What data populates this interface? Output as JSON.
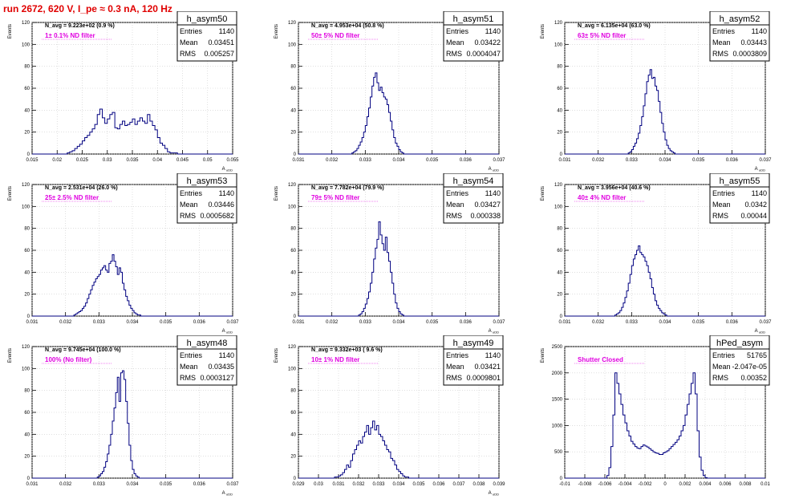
{
  "run_title": "run 2672,   620 V, I_pe ≈ 0.3 nA, 120 Hz",
  "colors": {
    "hist": "#000080",
    "annotation": "#e000e0",
    "title": "#e00000",
    "frame": "#000000",
    "grid": "#cccccc"
  },
  "stat_labels": {
    "entries": "Entries",
    "mean": "Mean",
    "rms": "RMS"
  },
  "chart_data": [
    {
      "type": "histogram",
      "name": "h_asym50",
      "stats": {
        "entries": "1140",
        "mean": "0.03451",
        "rms": "0.005257"
      },
      "navg": "N_avg = 9.223e+02 (0.9 %)",
      "note": "1± 0.1% ND filter",
      "xlabel": "A uDD",
      "ylabel": "Events",
      "xlim": [
        0.015,
        0.055
      ],
      "ylim": [
        0,
        120
      ],
      "xticks": [
        "0.015",
        "0.02",
        "0.025",
        "0.03",
        "0.035",
        "0.04",
        "0.045",
        "0.05",
        "0.055"
      ],
      "yticks": [
        "0",
        "20",
        "40",
        "60",
        "80",
        "100",
        "120"
      ],
      "x0": 0.015,
      "bin_width": 0.0005,
      "values": [
        0,
        0,
        0,
        0,
        0,
        0,
        0,
        0,
        0,
        0,
        0,
        0,
        0,
        0,
        1,
        2,
        3,
        5,
        7,
        9,
        12,
        15,
        17,
        20,
        23,
        27,
        36,
        41,
        33,
        28,
        32,
        36,
        38,
        24,
        23,
        27,
        30,
        26,
        27,
        29,
        32,
        27,
        30,
        33,
        30,
        28,
        36,
        30,
        26,
        22,
        15,
        10,
        8,
        5,
        2,
        1,
        1,
        1,
        0,
        0,
        0,
        0,
        0,
        0,
        0,
        0,
        0,
        0,
        0,
        0,
        0,
        0,
        0,
        0,
        0,
        0,
        0,
        0,
        0,
        0,
        0
      ]
    },
    {
      "type": "histogram",
      "name": "h_asym51",
      "stats": {
        "entries": "1140",
        "mean": "0.03422",
        "rms": "0.0004047"
      },
      "navg": "N_avg = 4.953e+04 (50.8 %)",
      "note": "50± 5% ND filter",
      "xlabel": "A uDD",
      "ylabel": "Events",
      "xlim": [
        0.031,
        0.037
      ],
      "ylim": [
        0,
        120
      ],
      "xticks": [
        "0.031",
        "0.032",
        "0.033",
        "0.034",
        "0.035",
        "0.036",
        "0.037"
      ],
      "yticks": [
        "0",
        "20",
        "40",
        "60",
        "80",
        "100",
        "120"
      ],
      "x0": 0.031,
      "bin_width": 5e-05,
      "values": [
        0,
        0,
        0,
        0,
        0,
        0,
        0,
        0,
        0,
        0,
        0,
        0,
        0,
        0,
        0,
        0,
        0,
        0,
        0,
        0,
        0,
        0,
        0,
        0,
        0,
        0,
        0,
        0,
        0,
        0,
        0,
        0,
        1,
        2,
        3,
        5,
        8,
        11,
        15,
        20,
        26,
        34,
        42,
        52,
        62,
        70,
        74,
        65,
        58,
        61,
        56,
        52,
        50,
        45,
        38,
        30,
        22,
        15,
        10,
        7,
        4,
        2,
        1,
        0,
        0,
        0,
        0,
        0,
        0,
        0,
        0,
        0,
        0,
        0,
        0,
        0,
        0,
        0,
        0,
        0,
        0,
        0,
        0,
        0,
        0,
        0,
        0,
        0,
        0,
        0,
        0,
        0,
        0,
        0,
        0,
        0,
        0,
        0,
        0,
        0,
        0,
        0,
        0,
        0,
        0,
        0,
        0,
        0,
        0,
        0,
        0,
        0,
        0,
        0,
        0,
        0,
        0,
        0,
        0,
        0
      ]
    },
    {
      "type": "histogram",
      "name": "h_asym52",
      "stats": {
        "entries": "1140",
        "mean": "0.03443",
        "rms": "0.0003809"
      },
      "navg": "N_avg = 6.135e+04 (63.0 %)",
      "note": "63± 5% ND filter",
      "xlabel": "A uDD",
      "ylabel": "Events",
      "xlim": [
        0.031,
        0.037
      ],
      "ylim": [
        0,
        120
      ],
      "xticks": [
        "0.031",
        "0.032",
        "0.033",
        "0.034",
        "0.035",
        "0.036",
        "0.037"
      ],
      "yticks": [
        "0",
        "20",
        "40",
        "60",
        "80",
        "100",
        "120"
      ],
      "x0": 0.031,
      "bin_width": 5e-05,
      "values": [
        0,
        0,
        0,
        0,
        0,
        0,
        0,
        0,
        0,
        0,
        0,
        0,
        0,
        0,
        0,
        0,
        0,
        0,
        0,
        0,
        0,
        0,
        0,
        0,
        0,
        0,
        0,
        0,
        0,
        0,
        0,
        0,
        0,
        0,
        0,
        0,
        0,
        0,
        1,
        2,
        4,
        7,
        10,
        14,
        19,
        26,
        34,
        44,
        55,
        66,
        72,
        77,
        69,
        70,
        62,
        58,
        48,
        38,
        28,
        20,
        13,
        8,
        5,
        3,
        2,
        1,
        0,
        0,
        0,
        0,
        0,
        0,
        0,
        0,
        0,
        0,
        0,
        0,
        0,
        0,
        0,
        0,
        0,
        0,
        0,
        0,
        0,
        0,
        0,
        0,
        0,
        0,
        0,
        0,
        0,
        0,
        0,
        0,
        0,
        0,
        0,
        0,
        0,
        0,
        0,
        0,
        0,
        0,
        0,
        0,
        0,
        0,
        0,
        0,
        0,
        0,
        0,
        0,
        0,
        0
      ]
    },
    {
      "type": "histogram",
      "name": "h_asym53",
      "stats": {
        "entries": "1140",
        "mean": "0.03446",
        "rms": "0.0005682"
      },
      "navg": "N_avg = 2.531e+04 (26.0 %)",
      "note": "25± 2.5% ND filter",
      "xlabel": "A uDD",
      "ylabel": "Events",
      "xlim": [
        0.031,
        0.037
      ],
      "ylim": [
        0,
        120
      ],
      "xticks": [
        "0.031",
        "0.032",
        "0.033",
        "0.034",
        "0.035",
        "0.036",
        "0.037"
      ],
      "yticks": [
        "0",
        "20",
        "40",
        "60",
        "80",
        "100",
        "120"
      ],
      "x0": 0.031,
      "bin_width": 5e-05,
      "values": [
        0,
        0,
        0,
        0,
        0,
        0,
        0,
        0,
        0,
        0,
        0,
        0,
        0,
        0,
        0,
        0,
        0,
        0,
        0,
        0,
        0,
        0,
        0,
        0,
        0,
        1,
        2,
        3,
        4,
        5,
        7,
        9,
        12,
        16,
        20,
        24,
        28,
        31,
        34,
        36,
        38,
        42,
        44,
        46,
        42,
        40,
        48,
        50,
        56,
        50,
        45,
        38,
        44,
        40,
        30,
        24,
        18,
        14,
        10,
        7,
        5,
        3,
        2,
        1,
        1,
        0,
        0,
        0,
        0,
        0,
        0,
        0,
        0,
        0,
        0,
        0,
        0,
        0,
        0,
        0,
        0,
        0,
        0,
        0,
        0,
        0,
        0,
        0,
        0,
        0,
        0,
        0,
        0,
        0,
        0,
        0,
        0,
        0,
        0,
        0,
        0,
        0,
        0,
        0,
        0,
        0,
        0,
        0,
        0,
        0,
        0,
        0,
        0,
        0,
        0,
        0,
        0,
        0,
        0,
        0
      ]
    },
    {
      "type": "histogram",
      "name": "h_asym54",
      "stats": {
        "entries": "1140",
        "mean": "0.03427",
        "rms": "0.000338"
      },
      "navg": "N_avg = 7.782e+04 (79.9 %)",
      "note": "79± 5% ND filter",
      "xlabel": "A uDD",
      "ylabel": "Events",
      "xlim": [
        0.031,
        0.037
      ],
      "ylim": [
        0,
        120
      ],
      "xticks": [
        "0.031",
        "0.032",
        "0.033",
        "0.034",
        "0.035",
        "0.036",
        "0.037"
      ],
      "yticks": [
        "0",
        "20",
        "40",
        "60",
        "80",
        "100",
        "120"
      ],
      "x0": 0.031,
      "bin_width": 5e-05,
      "values": [
        0,
        0,
        0,
        0,
        0,
        0,
        0,
        0,
        0,
        0,
        0,
        0,
        0,
        0,
        0,
        0,
        0,
        0,
        0,
        0,
        0,
        0,
        0,
        0,
        0,
        0,
        0,
        0,
        0,
        0,
        0,
        0,
        0,
        0,
        0,
        0,
        1,
        2,
        4,
        7,
        11,
        16,
        22,
        30,
        40,
        52,
        62,
        70,
        86,
        74,
        66,
        60,
        72,
        58,
        50,
        40,
        30,
        20,
        12,
        7,
        4,
        2,
        1,
        0,
        0,
        0,
        0,
        0,
        0,
        0,
        0,
        0,
        0,
        0,
        0,
        0,
        0,
        0,
        0,
        0,
        0,
        0,
        0,
        0,
        0,
        0,
        0,
        0,
        0,
        0,
        0,
        0,
        0,
        0,
        0,
        0,
        0,
        0,
        0,
        0,
        0,
        0,
        0,
        0,
        0,
        0,
        0,
        0,
        0,
        0,
        0,
        0,
        0,
        0,
        0,
        0,
        0,
        0,
        0,
        0
      ]
    },
    {
      "type": "histogram",
      "name": "h_asym55",
      "stats": {
        "entries": "1140",
        "mean": "0.0342",
        "rms": "0.00044"
      },
      "navg": "N_avg = 3.956e+04 (40.6 %)",
      "note": "40± 4% ND filter",
      "xlabel": "A uDD",
      "ylabel": "Events",
      "xlim": [
        0.031,
        0.037
      ],
      "ylim": [
        0,
        120
      ],
      "xticks": [
        "0.031",
        "0.032",
        "0.033",
        "0.034",
        "0.035",
        "0.036",
        "0.037"
      ],
      "yticks": [
        "0",
        "20",
        "40",
        "60",
        "80",
        "100",
        "120"
      ],
      "x0": 0.031,
      "bin_width": 5e-05,
      "values": [
        0,
        0,
        0,
        0,
        0,
        0,
        0,
        0,
        0,
        0,
        0,
        0,
        0,
        0,
        0,
        0,
        0,
        0,
        0,
        0,
        0,
        0,
        0,
        0,
        0,
        0,
        0,
        0,
        0,
        0,
        1,
        2,
        3,
        5,
        8,
        12,
        17,
        23,
        30,
        38,
        46,
        52,
        56,
        60,
        64,
        58,
        56,
        54,
        50,
        46,
        40,
        34,
        26,
        20,
        14,
        10,
        7,
        5,
        3,
        2,
        1,
        0,
        0,
        0,
        0,
        0,
        0,
        0,
        0,
        0,
        0,
        0,
        0,
        0,
        0,
        0,
        0,
        0,
        0,
        0,
        0,
        0,
        0,
        0,
        0,
        0,
        0,
        0,
        0,
        0,
        0,
        0,
        0,
        0,
        0,
        0,
        0,
        0,
        0,
        0,
        0,
        0,
        0,
        0,
        0,
        0,
        0,
        0,
        0,
        0,
        0,
        0,
        0,
        0,
        0,
        0,
        0,
        0,
        0,
        0
      ]
    },
    {
      "type": "histogram",
      "name": "h_asym48",
      "stats": {
        "entries": "1140",
        "mean": "0.03435",
        "rms": "0.0003127"
      },
      "navg": "N_avg = 9.745e+04 (100.0 %)",
      "note": "100% (No filter)",
      "xlabel": "A uDD",
      "ylabel": "Events",
      "xlim": [
        0.031,
        0.037
      ],
      "ylim": [
        0,
        120
      ],
      "xticks": [
        "0.031",
        "0.032",
        "0.033",
        "0.034",
        "0.035",
        "0.036",
        "0.037"
      ],
      "yticks": [
        "0",
        "20",
        "40",
        "60",
        "80",
        "100",
        "120"
      ],
      "x0": 0.031,
      "bin_width": 5e-05,
      "values": [
        0,
        0,
        0,
        0,
        0,
        0,
        0,
        0,
        0,
        0,
        0,
        0,
        0,
        0,
        0,
        0,
        0,
        0,
        0,
        0,
        0,
        0,
        0,
        0,
        0,
        0,
        0,
        0,
        0,
        0,
        0,
        0,
        0,
        0,
        0,
        0,
        0,
        0,
        0,
        1,
        2,
        4,
        6,
        10,
        15,
        22,
        30,
        40,
        52,
        64,
        78,
        92,
        70,
        96,
        98,
        90,
        70,
        50,
        30,
        16,
        8,
        4,
        2,
        1,
        0,
        0,
        0,
        0,
        0,
        0,
        0,
        0,
        0,
        0,
        0,
        0,
        0,
        0,
        0,
        0,
        0,
        0,
        0,
        0,
        0,
        0,
        0,
        0,
        0,
        0,
        0,
        0,
        0,
        0,
        0,
        0,
        0,
        0,
        0,
        0,
        0,
        0,
        0,
        0,
        0,
        0,
        0,
        0,
        0,
        0,
        0,
        0,
        0,
        0,
        0,
        0,
        0,
        0,
        0,
        0
      ]
    },
    {
      "type": "histogram",
      "name": "h_asym49",
      "stats": {
        "entries": "1140",
        "mean": "0.03421",
        "rms": "0.0009801"
      },
      "navg": "N_avg = 9.332e+03 ( 9.6 %)",
      "note": "10± 1% ND filter",
      "xlabel": "A uDD",
      "ylabel": "Events",
      "xlim": [
        0.029,
        0.039
      ],
      "ylim": [
        0,
        120
      ],
      "xticks": [
        "0.029",
        "0.03",
        "0.031",
        "0.032",
        "0.033",
        "0.034",
        "0.035",
        "0.036",
        "0.037",
        "0.038",
        "0.039"
      ],
      "yticks": [
        "0",
        "20",
        "40",
        "60",
        "80",
        "100",
        "120"
      ],
      "x0": 0.029,
      "bin_width": 0.0001,
      "values": [
        0,
        0,
        0,
        0,
        0,
        0,
        0,
        0,
        0,
        0,
        0,
        0,
        0,
        0,
        0,
        0,
        0,
        0,
        1,
        1,
        2,
        3,
        5,
        8,
        12,
        10,
        16,
        22,
        26,
        30,
        34,
        32,
        38,
        42,
        48,
        40,
        46,
        52,
        44,
        48,
        40,
        38,
        34,
        30,
        26,
        24,
        18,
        16,
        12,
        8,
        6,
        4,
        2,
        1,
        1,
        0,
        0,
        0,
        0,
        0,
        0,
        0,
        0,
        0,
        0,
        0,
        0,
        0,
        0,
        0,
        0,
        0,
        0,
        0,
        0,
        0,
        0,
        0,
        0,
        0,
        0,
        0,
        0,
        0,
        0,
        0,
        0,
        0,
        0,
        0,
        0,
        0,
        0,
        0,
        0,
        0,
        0,
        0,
        0,
        0
      ]
    },
    {
      "type": "histogram",
      "name": "hPed_asym",
      "stats": {
        "entries": "51765",
        "mean": "-2.047e-05",
        "rms": "0.00352"
      },
      "navg": "",
      "note": "Shutter Closed",
      "xlabel": "",
      "ylabel": "Events",
      "xlim": [
        -0.01,
        0.01
      ],
      "ylim": [
        0,
        2500
      ],
      "xticks": [
        "-0.01",
        "-0.008",
        "-0.006",
        "-0.004",
        "-0.002",
        "0",
        "0.002",
        "0.004",
        "0.006",
        "0.008",
        "0.01"
      ],
      "yticks": [
        "0",
        "500",
        "1000",
        "1500",
        "2000",
        "2500"
      ],
      "x0": -0.01,
      "bin_width": 0.0002,
      "values": [
        0,
        0,
        0,
        0,
        0,
        0,
        0,
        0,
        0,
        0,
        0,
        0,
        0,
        0,
        0,
        0,
        0,
        0,
        0,
        0,
        0,
        50,
        200,
        600,
        1200,
        2000,
        1800,
        1600,
        1400,
        1200,
        1050,
        900,
        800,
        700,
        650,
        600,
        570,
        560,
        600,
        630,
        610,
        590,
        560,
        530,
        500,
        480,
        470,
        450,
        450,
        480,
        500,
        520,
        560,
        600,
        640,
        680,
        730,
        800,
        900,
        1000,
        1200,
        1400,
        1600,
        1800,
        2000,
        1600,
        900,
        400,
        150,
        50,
        10,
        0,
        0,
        0,
        0,
        0,
        0,
        0,
        0,
        0,
        0,
        0,
        0,
        0,
        0,
        0,
        0,
        0,
        0,
        0,
        0,
        0,
        0,
        0,
        0,
        0,
        0,
        0,
        0,
        0
      ]
    }
  ]
}
